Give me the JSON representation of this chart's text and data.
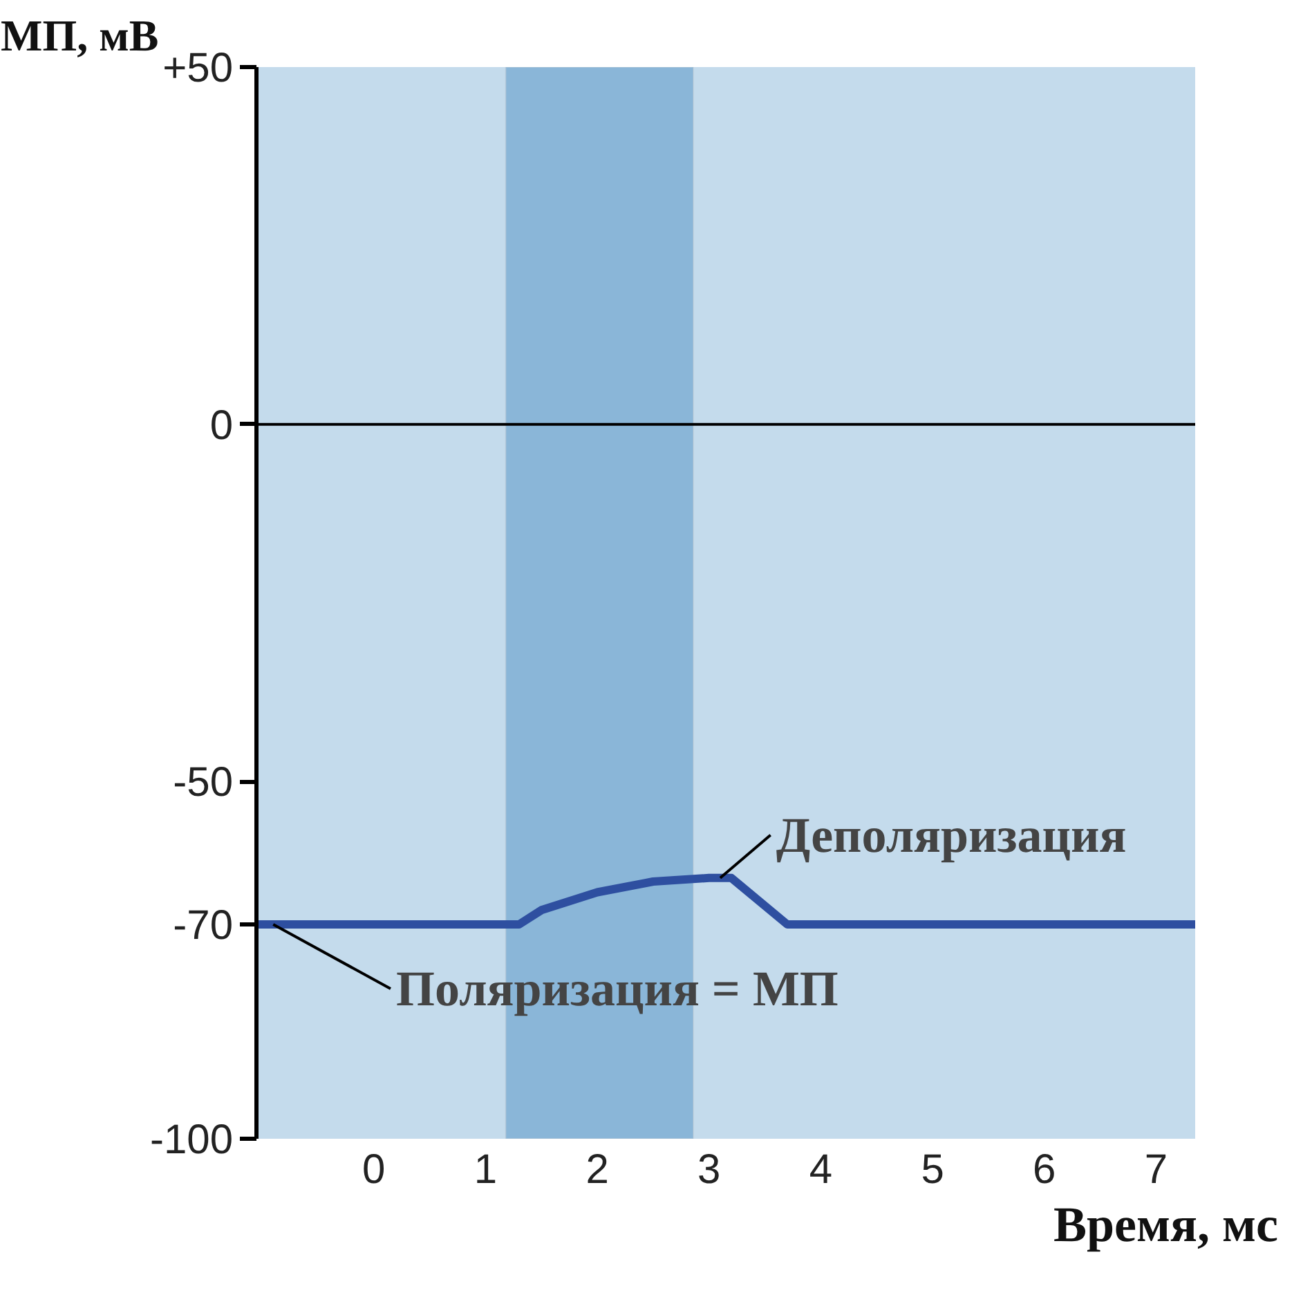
{
  "chart_data": {
    "type": "line",
    "xlabel": "Время, мс",
    "ylabel": "МП, мВ",
    "x": [
      -1.05,
      1.3,
      1.5,
      2,
      2.5,
      3,
      3.2,
      3.7,
      7.35
    ],
    "series": [
      {
        "color": "#2e4fa0",
        "values": [
          -70,
          -70,
          -68,
          -65.5,
          -64,
          -63.5,
          -63.5,
          -70,
          -70
        ]
      }
    ],
    "xlim": [
      -1.05,
      7.35
    ],
    "ylim": [
      -100,
      50
    ],
    "xticks": [
      0,
      1,
      2,
      3,
      4,
      5,
      6,
      7
    ],
    "yticks": [
      -100,
      -70,
      -50,
      0,
      {
        "value": 50,
        "label": "+50"
      }
    ],
    "bands": [
      {
        "axis": "x",
        "from": 1.18,
        "to": 2.86,
        "color": "#8ab6d8"
      }
    ],
    "ref_lines": [
      {
        "axis": "y",
        "value": 0,
        "color": "#000000"
      }
    ],
    "annotations": [
      {
        "text": "Деполяризация",
        "x": 3.1,
        "y": -63.5
      },
      {
        "text": "Поляризация = МП",
        "x": -0.9,
        "y": -70
      }
    ],
    "grid": false,
    "line_style": "solid",
    "marker": "none"
  }
}
